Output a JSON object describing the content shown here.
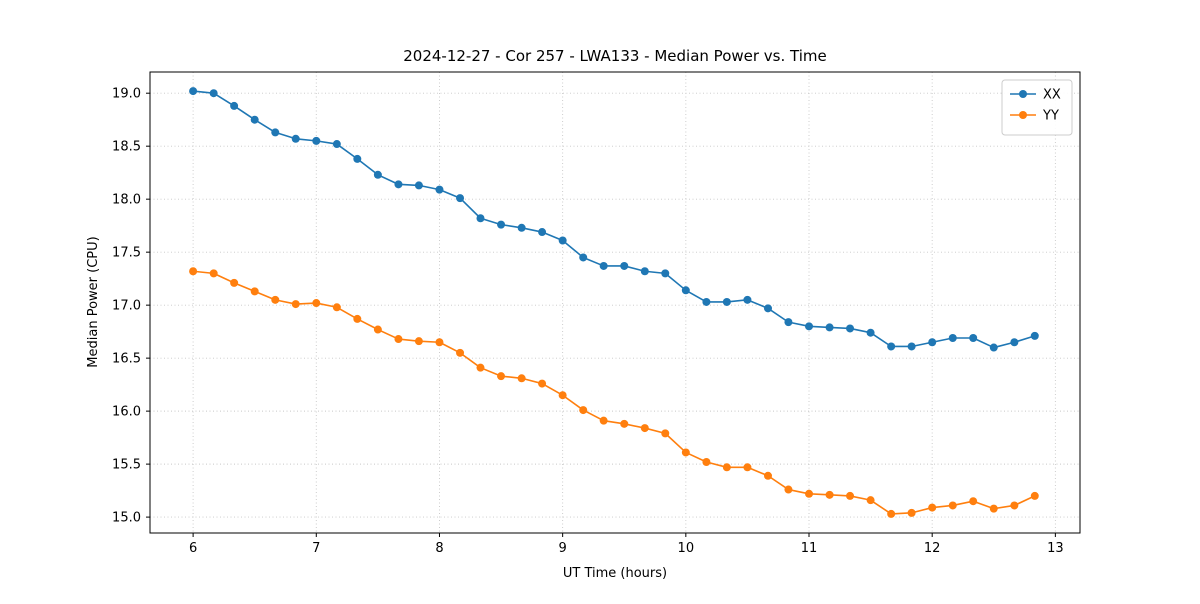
{
  "chart_data": {
    "type": "line",
    "title": "2024-12-27 - Cor 257 - LWA133 - Median Power vs. Time",
    "xlabel": "UT Time (hours)",
    "ylabel": "Median Power (CPU)",
    "xlim": [
      5.65,
      13.2
    ],
    "ylim": [
      14.85,
      19.2
    ],
    "xticks": [
      6,
      7,
      8,
      9,
      10,
      11,
      12,
      13
    ],
    "xtick_labels": [
      "6",
      "7",
      "8",
      "9",
      "10",
      "11",
      "12",
      "13"
    ],
    "yticks": [
      15.0,
      15.5,
      16.0,
      16.5,
      17.0,
      17.5,
      18.0,
      18.5,
      19.0
    ],
    "ytick_labels": [
      "15.0",
      "15.5",
      "16.0",
      "16.5",
      "17.0",
      "17.5",
      "18.0",
      "18.5",
      "19.0"
    ],
    "grid": true,
    "legend_position": "upper right",
    "x": [
      6.0,
      6.167,
      6.333,
      6.5,
      6.667,
      6.833,
      7.0,
      7.167,
      7.333,
      7.5,
      7.667,
      7.833,
      8.0,
      8.167,
      8.333,
      8.5,
      8.667,
      8.833,
      9.0,
      9.167,
      9.333,
      9.5,
      9.667,
      9.833,
      10.0,
      10.167,
      10.333,
      10.5,
      10.667,
      10.833,
      11.0,
      11.167,
      11.333,
      11.5,
      11.667,
      11.833,
      12.0,
      12.167,
      12.333,
      12.5,
      12.667,
      12.833
    ],
    "series": [
      {
        "name": "XX",
        "color": "#1f77b4",
        "values": [
          19.02,
          19.0,
          18.88,
          18.75,
          18.63,
          18.57,
          18.55,
          18.52,
          18.38,
          18.23,
          18.14,
          18.13,
          18.09,
          18.01,
          17.82,
          17.76,
          17.73,
          17.69,
          17.61,
          17.45,
          17.37,
          17.37,
          17.32,
          17.3,
          17.14,
          17.03,
          17.03,
          17.05,
          16.97,
          16.84,
          16.8,
          16.79,
          16.78,
          16.74,
          16.61,
          16.61,
          16.65,
          16.69,
          16.69,
          16.6,
          16.65,
          16.71
        ]
      },
      {
        "name": "YY",
        "color": "#ff7f0e",
        "values": [
          17.32,
          17.3,
          17.21,
          17.13,
          17.05,
          17.01,
          17.02,
          16.98,
          16.87,
          16.77,
          16.68,
          16.66,
          16.65,
          16.55,
          16.41,
          16.33,
          16.31,
          16.26,
          16.15,
          16.01,
          15.91,
          15.88,
          15.84,
          15.79,
          15.61,
          15.52,
          15.47,
          15.47,
          15.39,
          15.26,
          15.22,
          15.21,
          15.2,
          15.16,
          15.03,
          15.04,
          15.09,
          15.11,
          15.15,
          15.08,
          15.11,
          15.2
        ]
      }
    ]
  }
}
